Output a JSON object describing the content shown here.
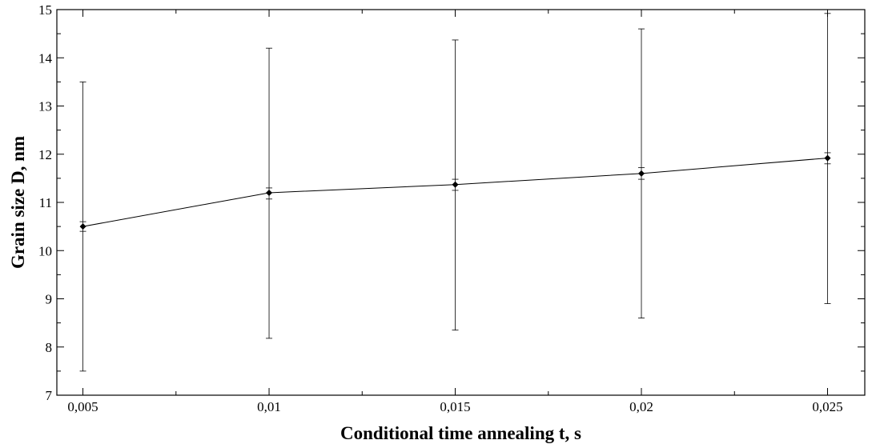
{
  "chart_data": {
    "type": "line",
    "title": "",
    "xlabel": "Conditional time annealing t, s",
    "ylabel": "Grain size D, nm",
    "xlim": [
      0.0043,
      0.026
    ],
    "ylim": [
      7,
      15
    ],
    "x_ticks": [
      0.005,
      0.01,
      0.015,
      0.02,
      0.025
    ],
    "x_tick_labels": [
      "0,005",
      "0,01",
      "0,015",
      "0,02",
      "0,025"
    ],
    "y_ticks": [
      7,
      8,
      9,
      10,
      11,
      12,
      13,
      14,
      15
    ],
    "y_tick_labels": [
      "7",
      "8",
      "9",
      "10",
      "11",
      "12",
      "13",
      "14",
      "15"
    ],
    "grid": false,
    "legend": "none",
    "series": [
      {
        "x": [
          0.005,
          0.01,
          0.015,
          0.02,
          0.025
        ],
        "y": [
          10.5,
          11.2,
          11.37,
          11.6,
          11.92
        ],
        "err_low": [
          7.5,
          8.18,
          8.35,
          8.6,
          8.9
        ],
        "err_high": [
          13.5,
          14.2,
          14.37,
          14.6,
          14.92
        ],
        "inner_err_low": [
          10.4,
          11.07,
          11.25,
          11.48,
          11.8
        ],
        "inner_err_high": [
          10.6,
          11.3,
          11.48,
          11.72,
          12.03
        ],
        "color": "#000000"
      }
    ]
  }
}
